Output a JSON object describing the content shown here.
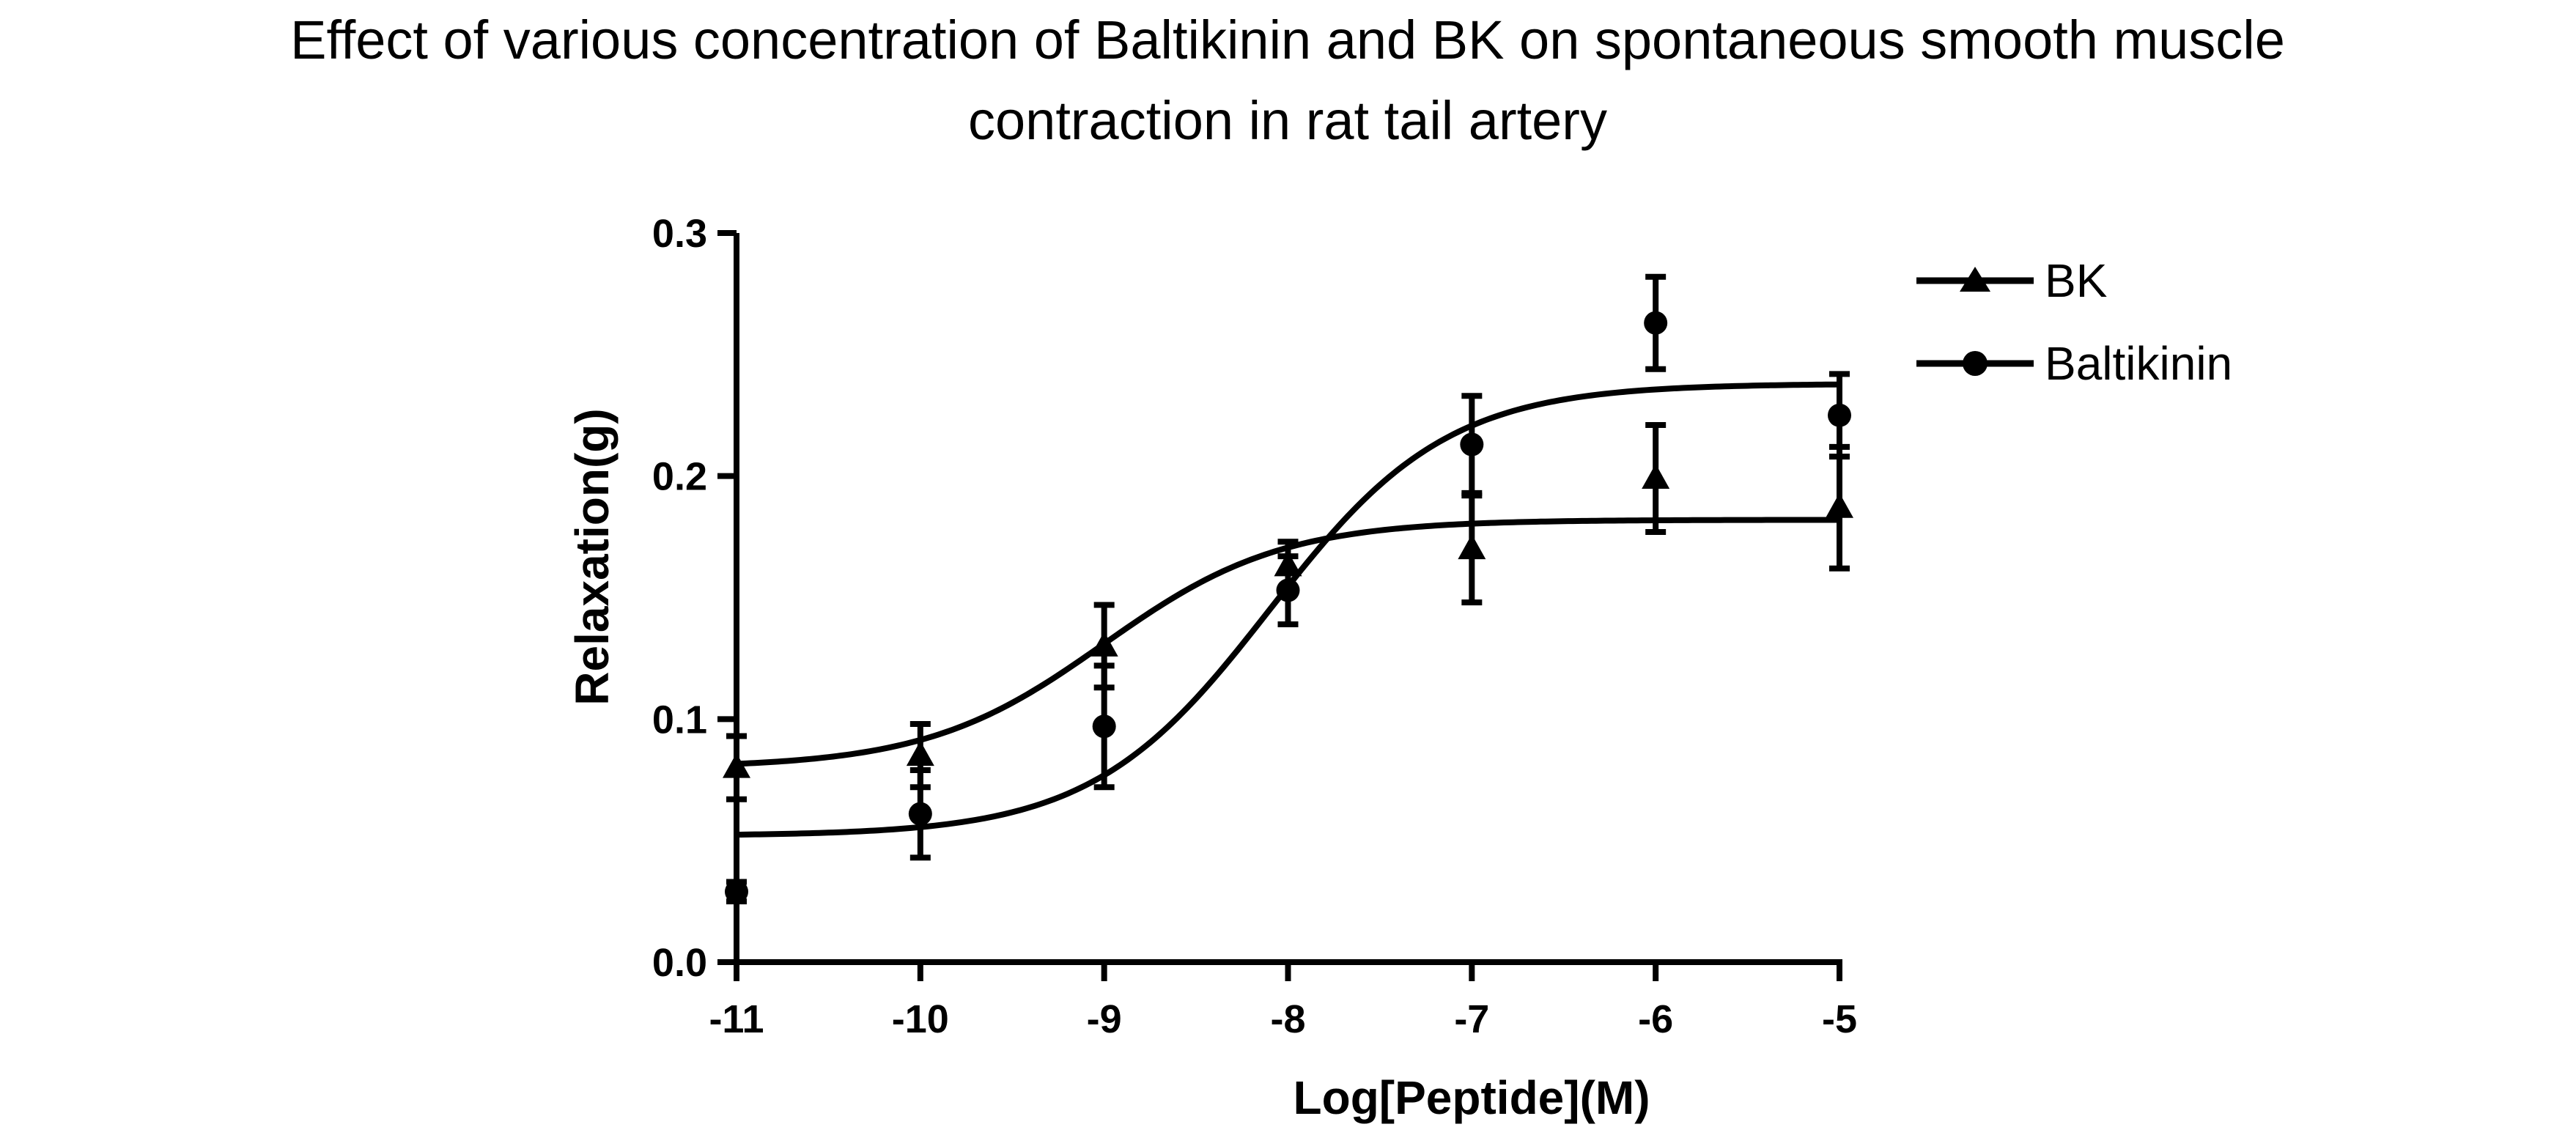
{
  "chart_data": {
    "type": "scatter",
    "title": "Effect of various concentration of Baltikinin and BK on spontaneous smooth muscle contraction in rat tail artery",
    "title_lines": [
      "Effect of various concentration of Baltikinin and BK on spontaneous smooth muscle",
      "contraction in rat tail artery"
    ],
    "xlabel": "Log[Peptide](M)",
    "ylabel": "Relaxation(g)",
    "xlim": [
      -11,
      -5
    ],
    "ylim": [
      0,
      0.3
    ],
    "x_ticks": [
      -11,
      -10,
      -9,
      -8,
      -7,
      -6,
      -5
    ],
    "x_tick_labels": [
      "-11",
      "-10",
      "-9",
      "-8",
      "-7",
      "-6",
      "-5"
    ],
    "y_ticks": [
      0,
      0.1,
      0.2,
      0.3
    ],
    "y_tick_labels": [
      "0.0",
      "0.1",
      "0.2",
      "0.3"
    ],
    "legend_position": "top-right",
    "series": [
      {
        "name": "BK",
        "marker": "triangle",
        "x": [
          -11,
          -10,
          -9,
          -8,
          -7,
          -6,
          -5
        ],
        "y": [
          0.08,
          0.085,
          0.13,
          0.163,
          0.17,
          0.199,
          0.187
        ],
        "err": [
          0.013,
          0.013,
          0.017,
          0.01,
          0.022,
          0.022,
          0.025
        ],
        "fit": {
          "model": "sigmoidal",
          "bottom": 0.08,
          "top": 0.182,
          "logEC50": -9.0,
          "hill": 0.9
        }
      },
      {
        "name": "Baltikinin",
        "marker": "circle",
        "x": [
          -11,
          -10,
          -9,
          -8,
          -7,
          -6,
          -5
        ],
        "y": [
          0.029,
          0.061,
          0.097,
          0.153,
          0.213,
          0.263,
          0.225
        ],
        "err": [
          0.004,
          0.018,
          0.025,
          0.014,
          0.02,
          0.019,
          0.017
        ],
        "fit": {
          "model": "sigmoidal",
          "bottom": 0.052,
          "top": 0.238,
          "logEC50": -8.1,
          "hill": 0.9
        }
      }
    ]
  }
}
